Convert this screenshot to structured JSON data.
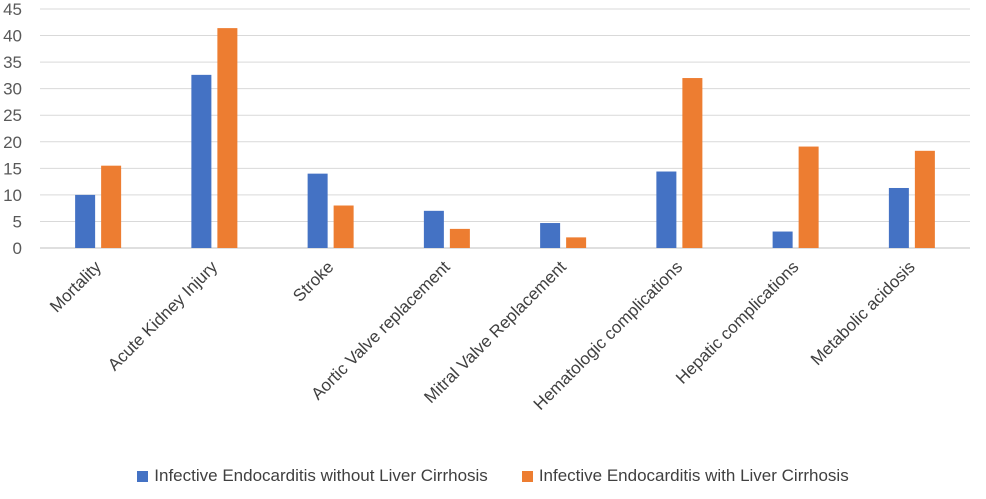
{
  "chart_data": {
    "type": "bar",
    "categories": [
      "Mortality",
      "Acute Kidney Injury",
      "Stroke",
      "Aortic Valve replacement",
      "Mitral Valve Replacement",
      "Hematologic complications",
      "Hepatic complications",
      "Metabolic acidosis"
    ],
    "series": [
      {
        "name": "Infective Endocarditis without Liver Cirrhosis",
        "color": "#4472C4",
        "values": [
          10,
          32.6,
          14,
          7,
          4.7,
          14.4,
          3.1,
          11.3
        ]
      },
      {
        "name": "Infective Endocarditis with Liver Cirrhosis",
        "color": "#ED7D31",
        "values": [
          15.5,
          41.4,
          8,
          3.6,
          2,
          32,
          19.1,
          18.3
        ]
      }
    ],
    "yticks": [
      "0",
      "5",
      "10",
      "15",
      "20",
      "25",
      "30",
      "35",
      "40",
      "45"
    ],
    "ylim": [
      0,
      45
    ],
    "grid": true,
    "legend_position": "bottom"
  }
}
